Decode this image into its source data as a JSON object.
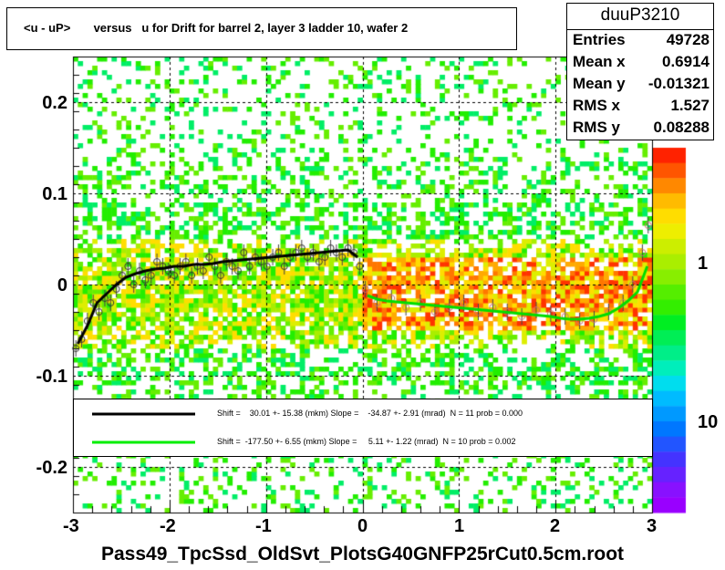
{
  "title": "<u - uP>       versus   u for Drift for barrel 2, layer 3 ladder 10, wafer 2",
  "stats": {
    "name": "duuP3210",
    "rows": [
      {
        "label": "Entries",
        "value": "49728"
      },
      {
        "label": "Mean x",
        "value": "0.6914"
      },
      {
        "label": "Mean y",
        "value": "-0.01321"
      },
      {
        "label": "RMS x",
        "value": "1.527"
      },
      {
        "label": "RMS y",
        "value": "0.08288"
      }
    ]
  },
  "x_axis_title": "Pass49_TpcSsd_OldSvt_PlotsG40GNFP25rCut0.5cm.root",
  "legend": {
    "entries": [
      {
        "text": "Shift =    30.01 +- 15.38 (mkm) Slope =    -34.87 +- 2.91 (mrad)  N = 11 prob = 0.000",
        "color": "#000000"
      },
      {
        "text": "Shift =  -177.50 +- 6.55 (mkm) Slope =     5.11 +- 1.22 (mrad)  N = 10 prob = 0.002",
        "color": "#00ee00"
      }
    ]
  },
  "colors": {
    "black_fit": "#000000",
    "green_fit": "#00dd00",
    "marker": "#d07070",
    "marker_dark": "#333333"
  },
  "chart_data": {
    "type": "heatmap",
    "xlim": [
      -3,
      3
    ],
    "ylim": [
      -0.25,
      0.25
    ],
    "x_ticks": [
      "-3",
      "-2",
      "-1",
      "0",
      "1",
      "2",
      "3"
    ],
    "y_ticks": [
      "-0.2",
      "-0.1",
      "0",
      "0.1",
      "0.2"
    ],
    "z_ticks": [
      "1",
      "10"
    ],
    "grid": true,
    "series": [
      {
        "x": [
          -2.95,
          -2.85,
          -2.75,
          -2.65,
          -2.55,
          -2.45,
          -2.35,
          -2.25,
          -2.15,
          -2.05,
          -1.95,
          -1.85,
          -1.75,
          -1.65,
          -1.55,
          -1.45,
          -1.35,
          -1.25,
          -1.15,
          -1.05,
          -0.95,
          -0.85,
          -0.75,
          -0.65,
          -0.55,
          -0.45,
          -0.35,
          -0.25,
          -0.15,
          -0.05
        ],
        "y": [
          -0.065,
          -0.045,
          -0.02,
          -0.01,
          0.0,
          0.008,
          0.012,
          0.015,
          0.017,
          0.018,
          0.02,
          0.02,
          0.022,
          0.022,
          0.023,
          0.025,
          0.026,
          0.027,
          0.028,
          0.029,
          0.03,
          0.031,
          0.032,
          0.033,
          0.034,
          0.035,
          0.036,
          0.037,
          0.038,
          0.03
        ]
      },
      {
        "x": [
          0.05,
          0.15,
          0.25,
          0.35,
          0.45,
          0.55,
          0.65,
          0.75,
          0.85,
          0.95,
          1.05,
          1.15,
          1.25,
          1.35,
          1.45,
          1.55,
          1.65,
          1.75,
          1.85,
          1.95,
          2.05,
          2.15,
          2.25,
          2.35,
          2.45,
          2.55,
          2.65,
          2.75,
          2.85,
          2.95
        ],
        "y": [
          -0.012,
          -0.016,
          -0.018,
          -0.019,
          -0.02,
          -0.021,
          -0.022,
          -0.023,
          -0.024,
          -0.025,
          -0.026,
          -0.027,
          -0.028,
          -0.029,
          -0.03,
          -0.031,
          -0.032,
          -0.033,
          -0.034,
          -0.035,
          -0.037,
          -0.038,
          -0.038,
          -0.037,
          -0.035,
          -0.032,
          -0.026,
          -0.018,
          -0.008,
          0.02
        ]
      }
    ],
    "profile_points": {
      "x": [
        -2.97,
        -2.91,
        -2.85,
        -2.79,
        -2.73,
        -2.67,
        -2.61,
        -2.55,
        -2.49,
        -2.43,
        -2.37,
        -2.31,
        -2.25,
        -2.19,
        -2.13,
        -2.07,
        -2.01,
        -1.95,
        -1.89,
        -1.83,
        -1.77,
        -1.71,
        -1.65,
        -1.59,
        -1.53,
        -1.47,
        -1.41,
        -1.35,
        -1.29,
        -1.23,
        -1.17,
        -1.11,
        -1.05,
        -0.99,
        -0.93,
        -0.87,
        -0.81,
        -0.75,
        -0.69,
        -0.63,
        -0.57,
        -0.51,
        -0.45,
        -0.39,
        -0.33,
        -0.27,
        -0.21,
        -0.15,
        -0.09,
        -0.03,
        0.03,
        0.15,
        0.3,
        0.45,
        0.6,
        0.75,
        0.9,
        1.05,
        1.2,
        1.35,
        1.5,
        1.65,
        1.8,
        1.95,
        2.1,
        2.25,
        2.4,
        2.55,
        2.7,
        2.8,
        2.9,
        2.96
      ],
      "y": [
        -0.07,
        -0.06,
        -0.04,
        -0.02,
        -0.03,
        -0.015,
        -0.02,
        -0.005,
        0.01,
        0.02,
        0.0,
        0.015,
        0.005,
        0.01,
        0.025,
        0.02,
        0.015,
        0.01,
        0.02,
        0.025,
        0.01,
        0.02,
        0.015,
        0.03,
        0.02,
        0.01,
        0.025,
        0.02,
        0.015,
        0.035,
        0.02,
        0.03,
        0.025,
        0.02,
        0.03,
        0.035,
        0.02,
        0.03,
        0.035,
        0.04,
        0.03,
        0.035,
        0.025,
        0.03,
        0.04,
        0.035,
        0.03,
        0.04,
        0.035,
        0.02,
        -0.005,
        -0.02,
        -0.015,
        -0.025,
        -0.02,
        -0.03,
        -0.025,
        -0.02,
        -0.03,
        -0.025,
        -0.03,
        -0.035,
        -0.028,
        -0.032,
        -0.035,
        -0.04,
        -0.038,
        -0.03,
        -0.02,
        0.0,
        0.035,
        0.065
      ]
    }
  }
}
